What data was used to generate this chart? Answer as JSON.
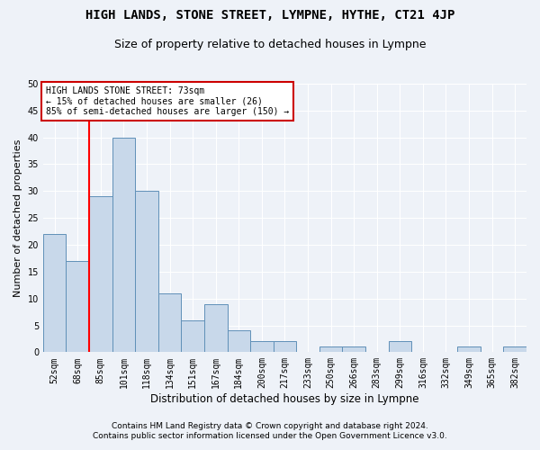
{
  "title": "HIGH LANDS, STONE STREET, LYMPNE, HYTHE, CT21 4JP",
  "subtitle": "Size of property relative to detached houses in Lympne",
  "xlabel": "Distribution of detached houses by size in Lympne",
  "ylabel": "Number of detached properties",
  "footnote1": "Contains HM Land Registry data © Crown copyright and database right 2024.",
  "footnote2": "Contains public sector information licensed under the Open Government Licence v3.0.",
  "annotation_line1": "HIGH LANDS STONE STREET: 73sqm",
  "annotation_line2": "← 15% of detached houses are smaller (26)",
  "annotation_line3": "85% of semi-detached houses are larger (150) →",
  "bar_labels": [
    "52sqm",
    "68sqm",
    "85sqm",
    "101sqm",
    "118sqm",
    "134sqm",
    "151sqm",
    "167sqm",
    "184sqm",
    "200sqm",
    "217sqm",
    "233sqm",
    "250sqm",
    "266sqm",
    "283sqm",
    "299sqm",
    "316sqm",
    "332sqm",
    "349sqm",
    "365sqm",
    "382sqm"
  ],
  "bar_values": [
    22,
    17,
    29,
    40,
    30,
    11,
    6,
    9,
    4,
    2,
    2,
    0,
    1,
    1,
    0,
    2,
    0,
    0,
    1,
    0,
    1
  ],
  "bar_color": "#c8d8ea",
  "bar_edge_color": "#6090b8",
  "red_line_x": 1.5,
  "ylim": [
    0,
    50
  ],
  "yticks": [
    0,
    5,
    10,
    15,
    20,
    25,
    30,
    35,
    40,
    45,
    50
  ],
  "bg_color": "#eef2f8",
  "plot_bg_color": "#eef2f8",
  "grid_color": "#ffffff",
  "annotation_box_color": "#ffffff",
  "annotation_box_edge": "#cc0000",
  "title_fontsize": 10,
  "subtitle_fontsize": 9,
  "ylabel_fontsize": 8,
  "xlabel_fontsize": 8.5,
  "tick_fontsize": 7,
  "annotation_fontsize": 7,
  "footnote_fontsize": 6.5
}
